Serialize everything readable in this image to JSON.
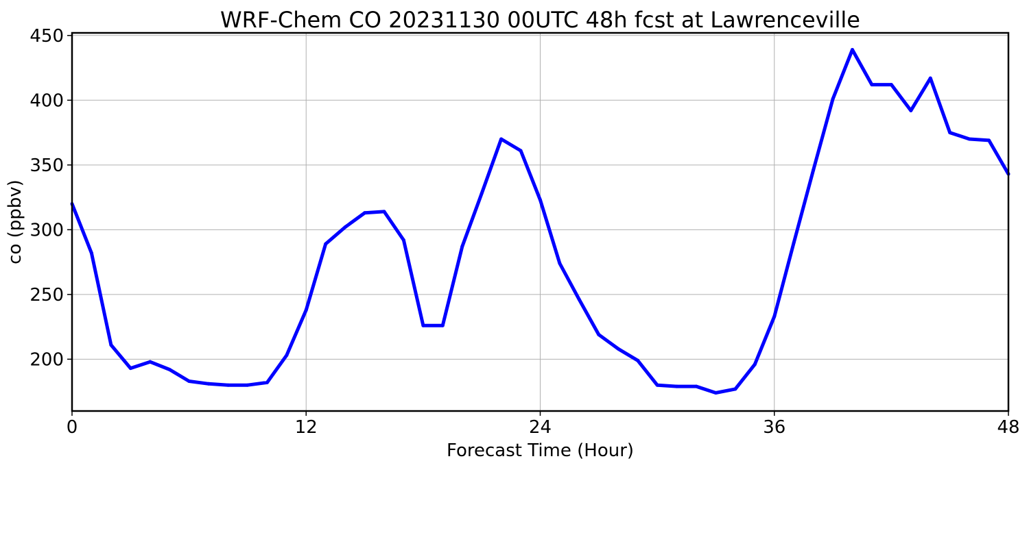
{
  "chart_data": {
    "type": "line",
    "title": "WRF-Chem CO  20231130 00UTC 48h fcst at Lawrenceville",
    "xlabel": "Forecast Time (Hour)",
    "ylabel": "co  (ppbv)",
    "xlim": [
      0,
      48
    ],
    "ylim": [
      160,
      452
    ],
    "xticks": [
      0,
      12,
      24,
      36,
      48
    ],
    "yticks": [
      200,
      250,
      300,
      350,
      400,
      450
    ],
    "grid": true,
    "legend": "none",
    "series": [
      {
        "color": "#0000ff",
        "x": [
          0,
          1,
          2,
          3,
          4,
          5,
          6,
          7,
          8,
          9,
          10,
          11,
          12,
          13,
          14,
          15,
          16,
          17,
          18,
          19,
          20,
          21,
          22,
          23,
          24,
          25,
          26,
          27,
          28,
          29,
          30,
          31,
          32,
          33,
          34,
          35,
          36,
          37,
          38,
          39,
          40,
          41,
          42,
          43,
          44,
          45,
          46,
          47,
          48
        ],
        "values": [
          320,
          282,
          211,
          193,
          198,
          192,
          183,
          181,
          180,
          180,
          182,
          203,
          238,
          289,
          302,
          313,
          314,
          292,
          226,
          226,
          287,
          328,
          370,
          361,
          323,
          274,
          246,
          219,
          208,
          199,
          180,
          179,
          179,
          174,
          177,
          196,
          233,
          290,
          346,
          401,
          439,
          412,
          412,
          392,
          417,
          375,
          370,
          369,
          343
        ]
      }
    ]
  }
}
